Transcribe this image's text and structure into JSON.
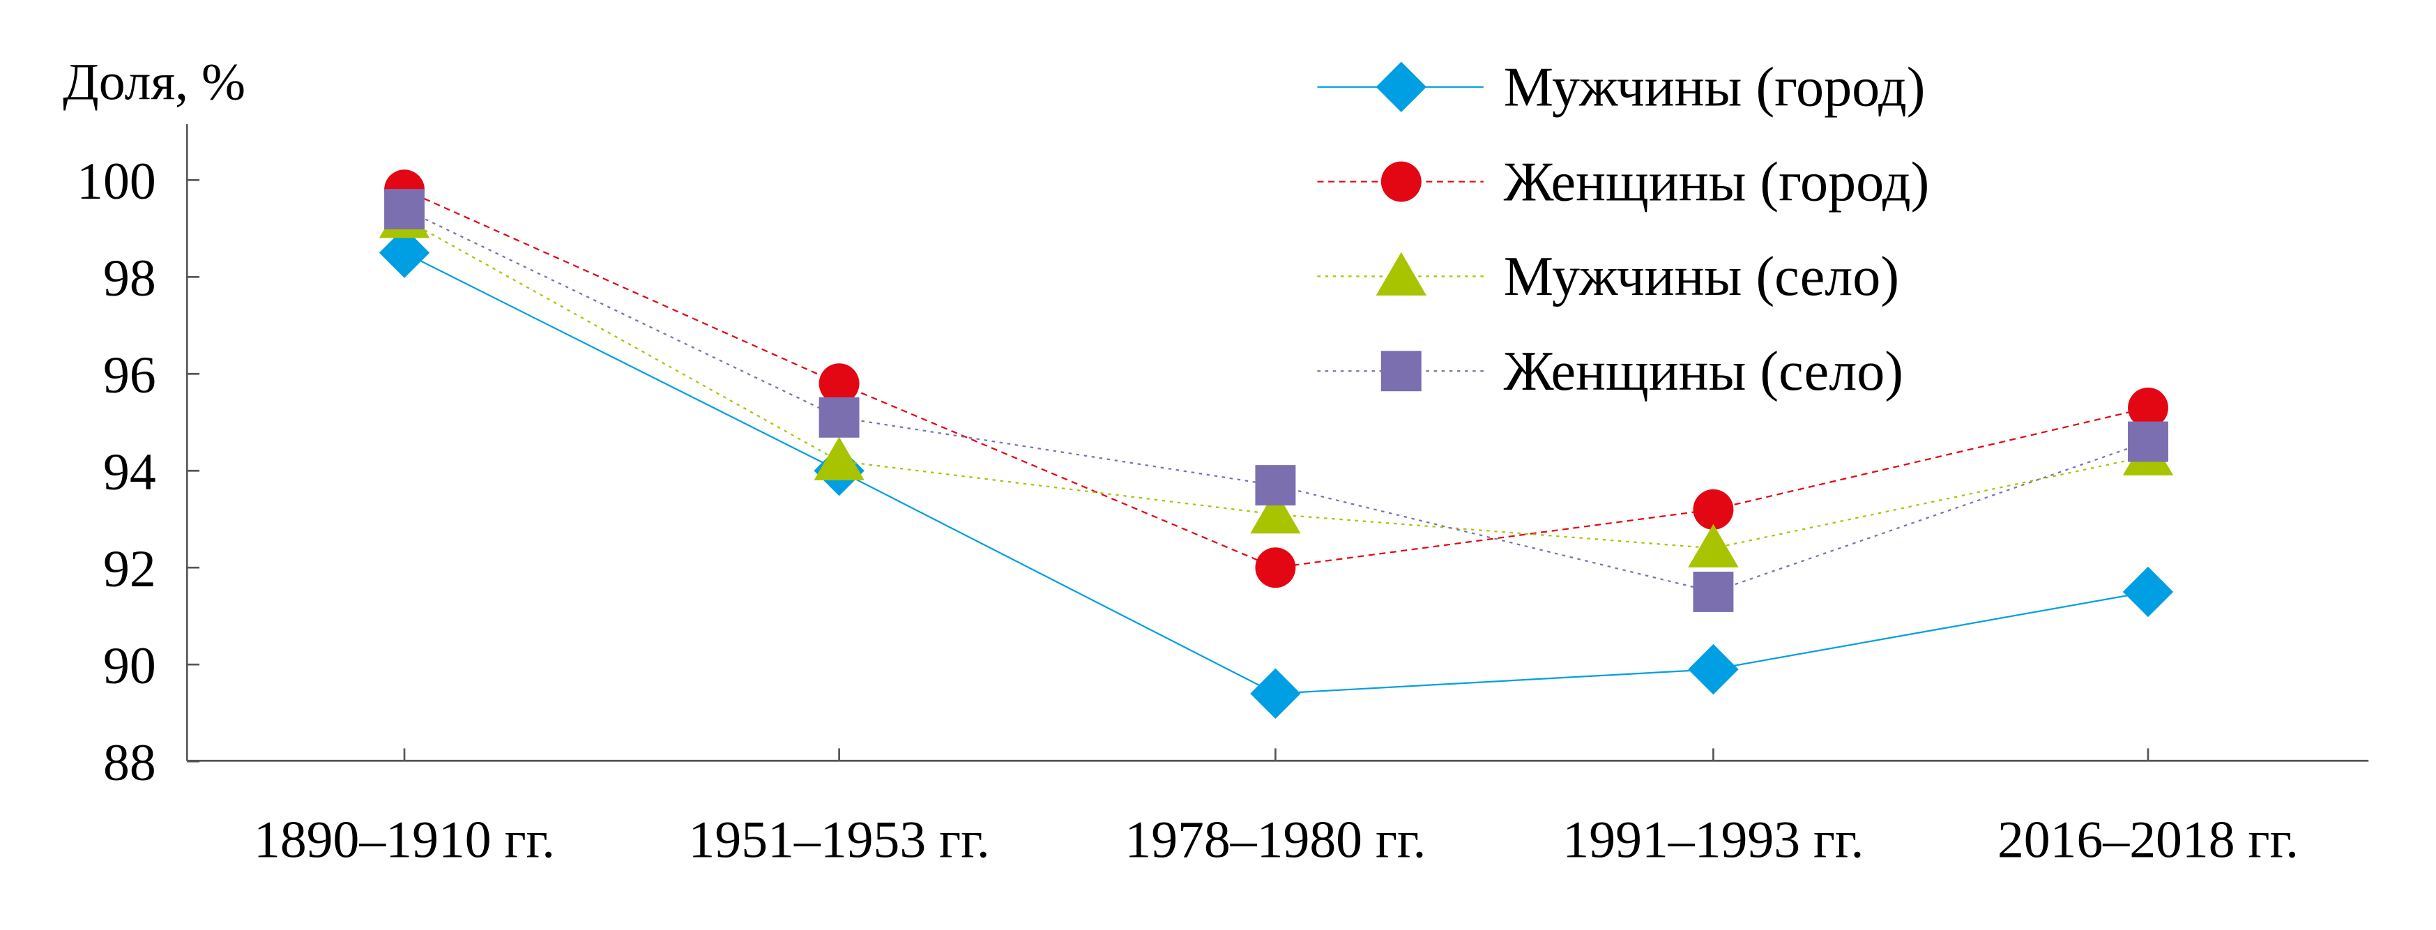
{
  "chart_data": {
    "type": "line",
    "title": "",
    "xlabel": "",
    "ylabel": "Доля, %",
    "ylim": [
      88,
      101
    ],
    "yticks": [
      88,
      90,
      92,
      94,
      96,
      98,
      100
    ],
    "categories": [
      "1890–1910 гг.",
      "1951–1953 гг.",
      "1978–1980 гг.",
      "1991–1993 гг.",
      "2016–2018 гг."
    ],
    "legend_position": "top-right",
    "grid": false,
    "series": [
      {
        "name": "Мужчины (город)",
        "marker": "diamond",
        "line": "solid",
        "color": "#009fe3",
        "values": [
          98.5,
          94.0,
          89.4,
          89.9,
          91.5
        ]
      },
      {
        "name": "Женщины (город)",
        "marker": "circle",
        "line": "dashed",
        "color": "#e30613",
        "values": [
          99.8,
          95.8,
          92.0,
          93.2,
          95.3
        ]
      },
      {
        "name": "Мужчины (село)",
        "marker": "triangle",
        "line": "dotted",
        "color": "#a8c400",
        "values": [
          99.2,
          94.2,
          93.1,
          92.4,
          94.3
        ]
      },
      {
        "name": "Женщины (село)",
        "marker": "square",
        "line": "dotted",
        "color": "#7b6fb0",
        "values": [
          99.4,
          95.1,
          93.7,
          91.5,
          94.6
        ]
      }
    ]
  }
}
